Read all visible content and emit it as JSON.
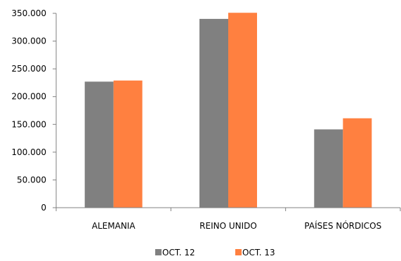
{
  "chart_data": {
    "type": "bar",
    "title": "",
    "xlabel": "",
    "ylabel": "",
    "categories": [
      "ALEMANIA",
      "REINO UNIDO",
      "PAÍSES NÓRDICOS"
    ],
    "series": [
      {
        "name": "OCT. 12",
        "color": "#808080",
        "values": [
          227000,
          340000,
          141000
        ]
      },
      {
        "name": "OCT. 13",
        "color": "#ff8040",
        "values": [
          229000,
          351000,
          161000
        ]
      }
    ],
    "ylim": [
      0,
      350000
    ],
    "yticks": [
      0,
      50000,
      100000,
      150000,
      200000,
      250000,
      300000,
      350000
    ],
    "ytick_labels": [
      "0",
      "50.000",
      "100.000",
      "150.000",
      "200.000",
      "250.000",
      "300.000",
      "350.000"
    ],
    "grid": false,
    "legend_position": "bottom"
  }
}
